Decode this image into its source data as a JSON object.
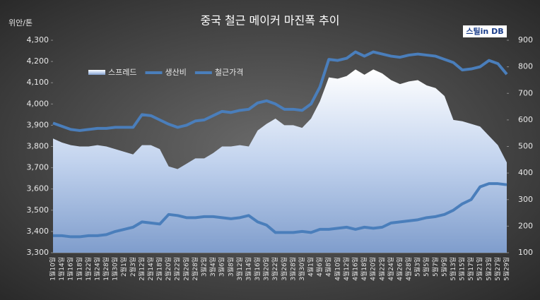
{
  "chart_data": {
    "type": "combo",
    "title": "중국 철근 메이커 마진폭 추이",
    "y_label": "위안/톤",
    "logo": "스틸in DB",
    "categories": [
      "1월10일",
      "1월14일",
      "1월16일",
      "1월18일",
      "1월22일",
      "1월24일",
      "1월28일",
      "1월30일",
      "2월1일",
      "2월3일",
      "2월12일",
      "2월14일",
      "2월18일",
      "2월20일",
      "2월22일",
      "2월26일",
      "2월28일",
      "3월2일",
      "3월4일",
      "3월6일",
      "3월8일",
      "3월12일",
      "3월14일",
      "3월16일",
      "3월20일",
      "3월22일",
      "3월26일",
      "3월28일",
      "3월30일",
      "4월1일",
      "4월6일",
      "4월8일",
      "4월10일",
      "4월12일",
      "4월16일",
      "4월18일",
      "4월20일",
      "4월22일",
      "4월24일",
      "4월26일",
      "4월28일",
      "5월3일",
      "5월5일",
      "5월7일",
      "5월9일",
      "5월13일",
      "5월15일",
      "5월17일",
      "5월21일",
      "5월23일",
      "5월27일",
      "5월29일"
    ],
    "series": [
      {
        "name": "스프레드",
        "kind": "area",
        "axis": "y2",
        "color": "#c5d5ee",
        "values": [
          530,
          515,
          505,
          500,
          500,
          505,
          500,
          490,
          480,
          470,
          505,
          505,
          490,
          425,
          415,
          435,
          455,
          455,
          475,
          500,
          500,
          505,
          500,
          560,
          585,
          605,
          580,
          580,
          570,
          605,
          670,
          760,
          755,
          765,
          790,
          770,
          790,
          775,
          750,
          735,
          745,
          750,
          730,
          720,
          690,
          600,
          595,
          585,
          575,
          540,
          505,
          440
        ]
      },
      {
        "name": "생산비",
        "kind": "line",
        "color": "#4a7ebb",
        "values": [
          3380,
          3380,
          3375,
          3375,
          3380,
          3380,
          3385,
          3400,
          3410,
          3420,
          3445,
          3440,
          3435,
          3480,
          3475,
          3465,
          3465,
          3470,
          3470,
          3465,
          3460,
          3465,
          3475,
          3445,
          3430,
          3395,
          3395,
          3395,
          3400,
          3395,
          3410,
          3410,
          3415,
          3420,
          3410,
          3420,
          3415,
          3420,
          3440,
          3445,
          3450,
          3455,
          3465,
          3470,
          3480,
          3500,
          3530,
          3550,
          3610,
          3625,
          3625,
          3620
        ]
      },
      {
        "name": "철근가격",
        "kind": "line",
        "color": "#4a7ebb",
        "values": [
          3910,
          3895,
          3880,
          3875,
          3880,
          3885,
          3885,
          3890,
          3890,
          3890,
          3950,
          3945,
          3925,
          3905,
          3890,
          3900,
          3920,
          3925,
          3945,
          3965,
          3960,
          3970,
          3975,
          4005,
          4015,
          4000,
          3975,
          3975,
          3970,
          4000,
          4080,
          4210,
          4205,
          4215,
          4245,
          4225,
          4245,
          4235,
          4225,
          4220,
          4230,
          4235,
          4230,
          4225,
          4210,
          4195,
          4160,
          4165,
          4175,
          4205,
          4190,
          4140
        ]
      }
    ],
    "ylim": [
      3300,
      4300
    ],
    "yticks": [
      {
        "value": 3300,
        "label": "3,300"
      },
      {
        "value": 3400,
        "label": "3,400"
      },
      {
        "value": 3500,
        "label": "3,500"
      },
      {
        "value": 3600,
        "label": "3,600"
      },
      {
        "value": 3700,
        "label": "3,700"
      },
      {
        "value": 3800,
        "label": "3,800"
      },
      {
        "value": 3900,
        "label": "3,900"
      },
      {
        "value": 4000,
        "label": "4,000"
      },
      {
        "value": 4100,
        "label": "4,100"
      },
      {
        "value": 4200,
        "label": "4,200"
      },
      {
        "value": 4300,
        "label": "4,300"
      }
    ],
    "y2lim": [
      100,
      900
    ],
    "y2ticks": [
      100,
      200,
      300,
      400,
      500,
      600,
      700,
      800,
      900
    ]
  }
}
